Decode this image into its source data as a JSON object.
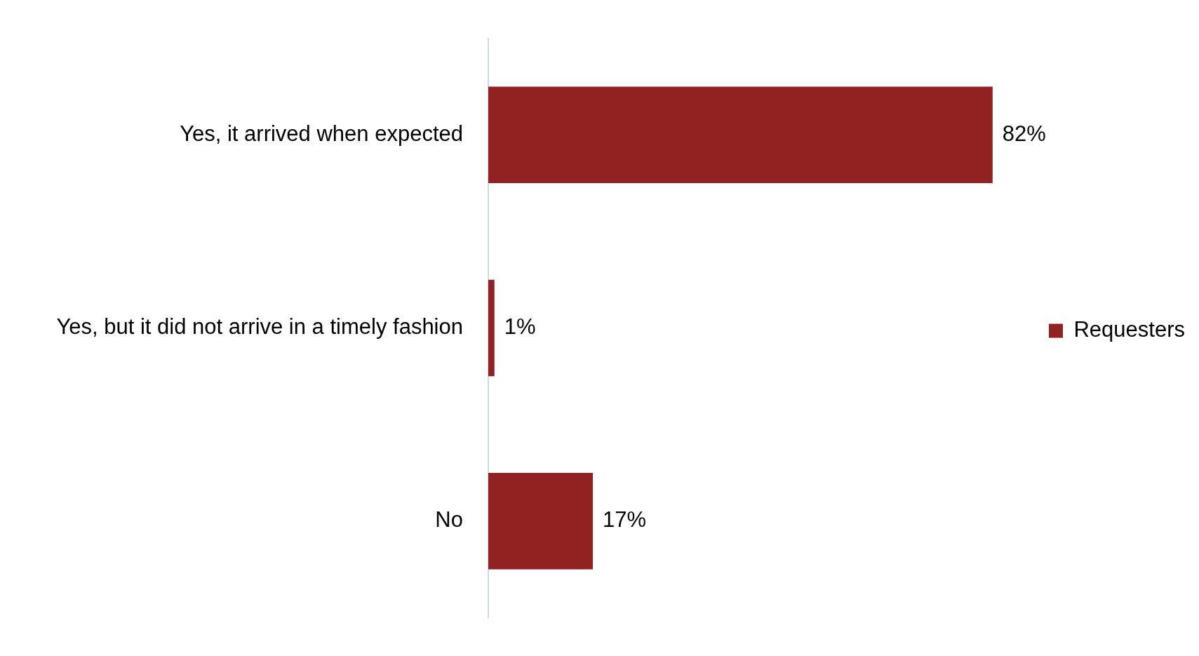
{
  "chart_data": {
    "type": "bar",
    "orientation": "horizontal",
    "categories": [
      "Yes, it arrived when expected",
      "Yes, but it did not arrive in a timely fashion",
      "No"
    ],
    "series": [
      {
        "name": "Requesters",
        "color": "#922222",
        "values": [
          82,
          1,
          17
        ],
        "value_labels": [
          "82%",
          "1%",
          "17%"
        ]
      }
    ],
    "legend": "right"
  }
}
